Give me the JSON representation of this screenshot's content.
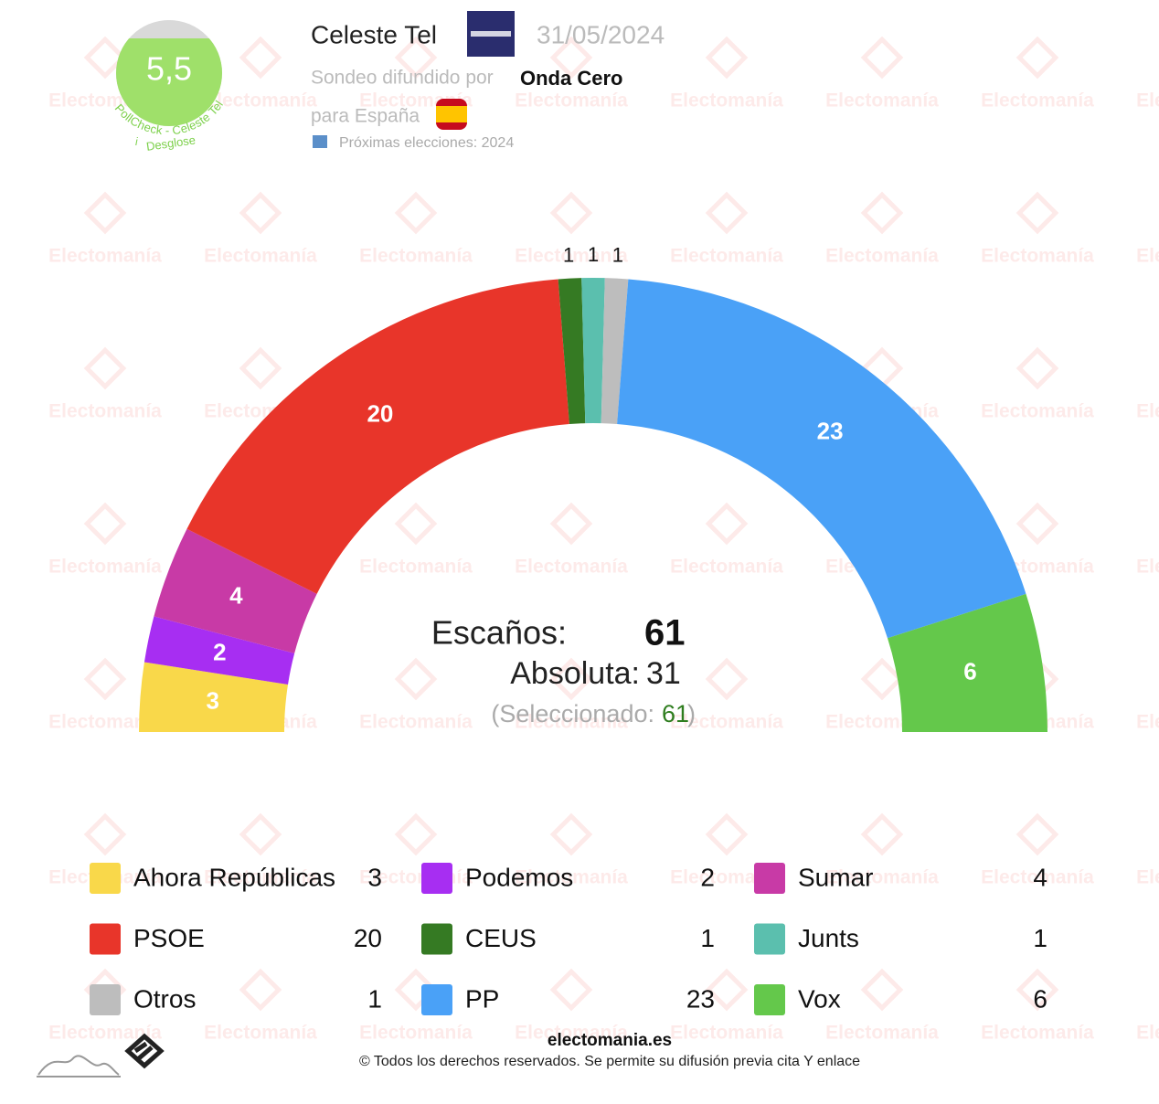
{
  "header": {
    "pollster": "Celeste Tel",
    "date": "31/05/2024",
    "published_by_label": "Sondeo difundido por",
    "media": "Onda Cero",
    "region_label": "para España",
    "next_elections": "Próximas elecciones: 2024",
    "rating": {
      "value": 5.5,
      "label": "5,5"
    },
    "rating_name": "PollCheck - Celeste Tel",
    "breakdown": "Desglose"
  },
  "chart_data": {
    "type": "hemicycle",
    "categories": [
      "Ahora Repúblicas",
      "Podemos",
      "Sumar",
      "PSOE",
      "CEUS",
      "Junts",
      "Otros",
      "PP",
      "Vox"
    ],
    "values": [
      3,
      2,
      4,
      20,
      1,
      1,
      1,
      23,
      6
    ],
    "colors": [
      "#f9d84a",
      "#a72ef2",
      "#c83aa6",
      "#e8352a",
      "#357a23",
      "#5bbfae",
      "#bdbdbd",
      "#4aa1f7",
      "#64c84b"
    ],
    "total_label": "Escaños:",
    "total": 61,
    "majority_label": "Absoluta:",
    "majority": 31,
    "selected_label": "(Seleccionado:",
    "selected": 61,
    "selected_close": ")"
  },
  "footer": {
    "site": "electomania.es",
    "copyright": "© Todos los derechos reservados. Se permite su difusión previa cita Y enlace"
  },
  "watermark": "Electomanía"
}
